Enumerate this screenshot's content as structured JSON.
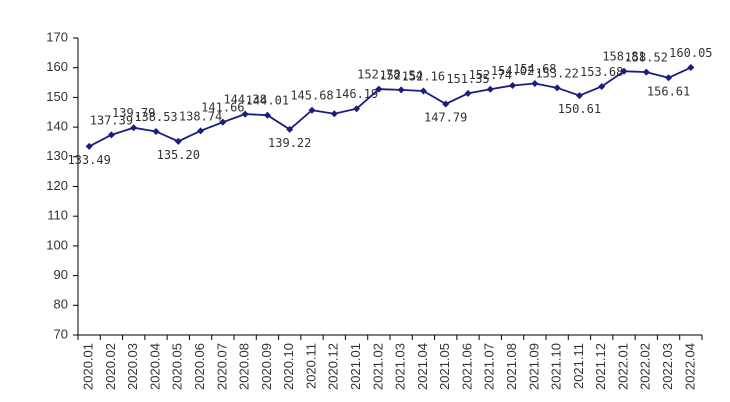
{
  "chart_data": {
    "type": "line",
    "categories": [
      "2020.01",
      "2020.02",
      "2020.03",
      "2020.04",
      "2020.05",
      "2020.06",
      "2020.07",
      "2020.08",
      "2020.09",
      "2020.10",
      "2020.11",
      "2020.12",
      "2021.01",
      "2021.02",
      "2021.03",
      "2021.04",
      "2021.05",
      "2021.06",
      "2021.07",
      "2021.08",
      "2021.09",
      "2021.10",
      "2021.11",
      "2021.12",
      "2022.01",
      "2022.02",
      "2022.03",
      "2022.04"
    ],
    "series": [
      {
        "color": "#1c1c80",
        "values": [
          133.49,
          137.39,
          139.79,
          138.53,
          135.2,
          138.74,
          141.66,
          144.38,
          144.01,
          139.22,
          145.68,
          144.5,
          146.19,
          152.78,
          152.54,
          152.16,
          147.79,
          151.35,
          152.74,
          154.02,
          154.68,
          153.22,
          150.61,
          153.68,
          158.81,
          158.52,
          156.61,
          160.05
        ],
        "value_labels": [
          "133.49",
          "137.39",
          "139.79",
          "138.53",
          "135.20",
          "138.74",
          "141.66",
          "144.38",
          "144.01",
          "139.22",
          "145.68",
          null,
          "146.19",
          "152.78",
          "152.54",
          "152.16",
          "147.79",
          "151.35",
          "152.74",
          "154.02",
          "154.68",
          "153.22",
          "150.61",
          "153.68",
          "158.81",
          "158.52",
          "156.61",
          "160.05"
        ]
      }
    ],
    "ylim": [
      70,
      170
    ],
    "yticks": [
      70,
      80,
      90,
      100,
      110,
      120,
      130,
      140,
      150,
      160,
      170
    ],
    "grid": false
  }
}
